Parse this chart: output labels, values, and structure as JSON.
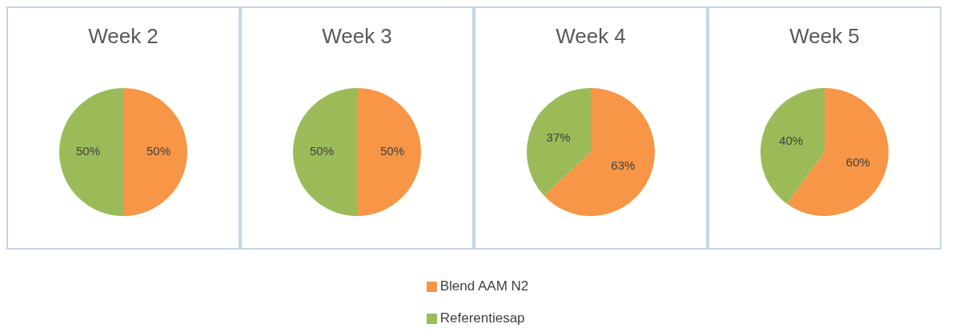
{
  "chart_data": {
    "type": "pie",
    "categories": [
      "Blend AAM N2",
      "Referentiesap"
    ],
    "colors": [
      "#f79646",
      "#9bbb59"
    ],
    "legend": "bottom",
    "series": [
      {
        "name": "Week 2",
        "values": [
          50,
          50
        ],
        "value_labels": [
          "50%",
          "50%"
        ]
      },
      {
        "name": "Week 3",
        "values": [
          50,
          50
        ],
        "value_labels": [
          "50%",
          "50%"
        ]
      },
      {
        "name": "Week 4",
        "values": [
          63,
          37
        ],
        "value_labels": [
          "63%",
          "37%"
        ]
      },
      {
        "name": "Week 5",
        "values": [
          60,
          40
        ],
        "value_labels": [
          "60%",
          "40%"
        ]
      }
    ]
  }
}
